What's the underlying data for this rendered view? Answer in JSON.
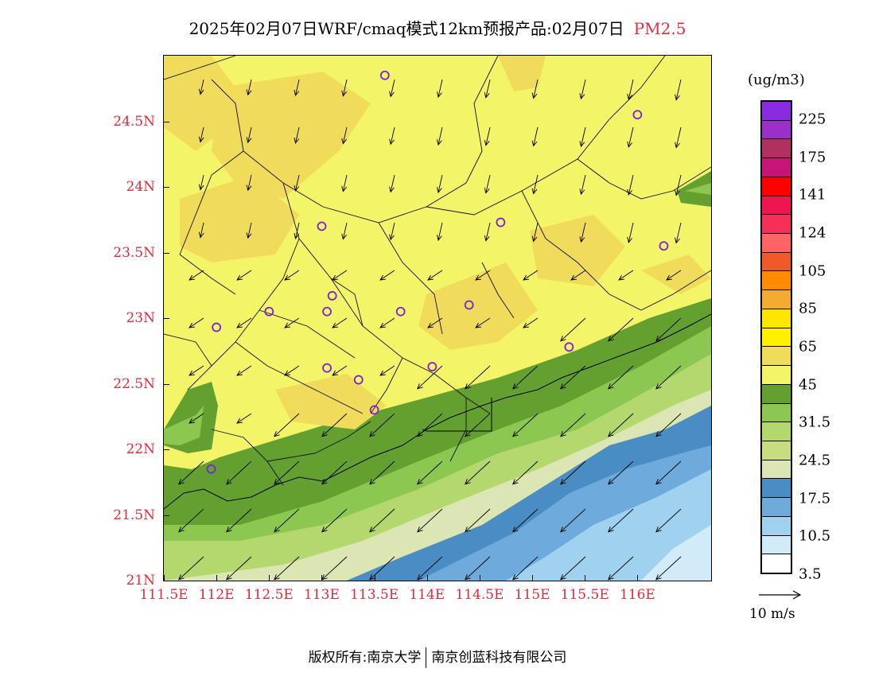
{
  "title": {
    "main": "2025年02月07日WRF/cmaq模式12km预报产品:02月07日",
    "variable": "PM2.5"
  },
  "map": {
    "lat_labels": [
      "24.5N",
      "24N",
      "23.5N",
      "23N",
      "22.5N",
      "22N",
      "21.5N",
      "21N"
    ],
    "lon_labels": [
      "111.5E",
      "112E",
      "112.5E",
      "113E",
      "113.5E",
      "114E",
      "114.5E",
      "115E",
      "115.5E",
      "116E"
    ],
    "lat_range": [
      21.0,
      25.0
    ],
    "lon_range": [
      111.5,
      116.7
    ],
    "field": "PM2.5 concentration with 10m wind vectors",
    "stations": [
      {
        "lon": 113.6,
        "lat": 24.85
      },
      {
        "lon": 116.0,
        "lat": 24.55
      },
      {
        "lon": 113.0,
        "lat": 23.7
      },
      {
        "lon": 114.7,
        "lat": 23.73
      },
      {
        "lon": 116.25,
        "lat": 23.55
      },
      {
        "lon": 113.1,
        "lat": 23.17
      },
      {
        "lon": 112.5,
        "lat": 23.05
      },
      {
        "lon": 113.05,
        "lat": 23.05
      },
      {
        "lon": 113.75,
        "lat": 23.05
      },
      {
        "lon": 114.4,
        "lat": 23.1
      },
      {
        "lon": 112.0,
        "lat": 22.93
      },
      {
        "lon": 115.35,
        "lat": 22.78
      },
      {
        "lon": 113.05,
        "lat": 22.62
      },
      {
        "lon": 114.05,
        "lat": 22.63
      },
      {
        "lon": 113.35,
        "lat": 22.53
      },
      {
        "lon": 113.5,
        "lat": 22.3
      },
      {
        "lon": 111.95,
        "lat": 21.85
      }
    ]
  },
  "colorbar": {
    "unit": "(ug/m3)",
    "labels": [
      "225",
      "175",
      "141",
      "124",
      "105",
      "85",
      "65",
      "45",
      "31.5",
      "24.5",
      "17.5",
      "10.5",
      "3.5"
    ],
    "colors": [
      "#8a2be2",
      "#9b30c8",
      "#b03060",
      "#c81478",
      "#ff0000",
      "#f01450",
      "#f52f55",
      "#ff6464",
      "#f05a28",
      "#ff8c00",
      "#f5aa32",
      "#ffe600",
      "#fff000",
      "#f0dc5a",
      "#f4f468",
      "#64a030",
      "#8cc850",
      "#b4d76e",
      "#c8dc82",
      "#dce6b4",
      "#4a8cc4",
      "#6eaadc",
      "#a0d2f0",
      "#d2ebf8",
      "#ffffff"
    ]
  },
  "wind_reference": {
    "label": "10 m/s"
  },
  "footer": {
    "left": "版权所有:南京大学",
    "right": "南京创蓝科技有限公司"
  }
}
